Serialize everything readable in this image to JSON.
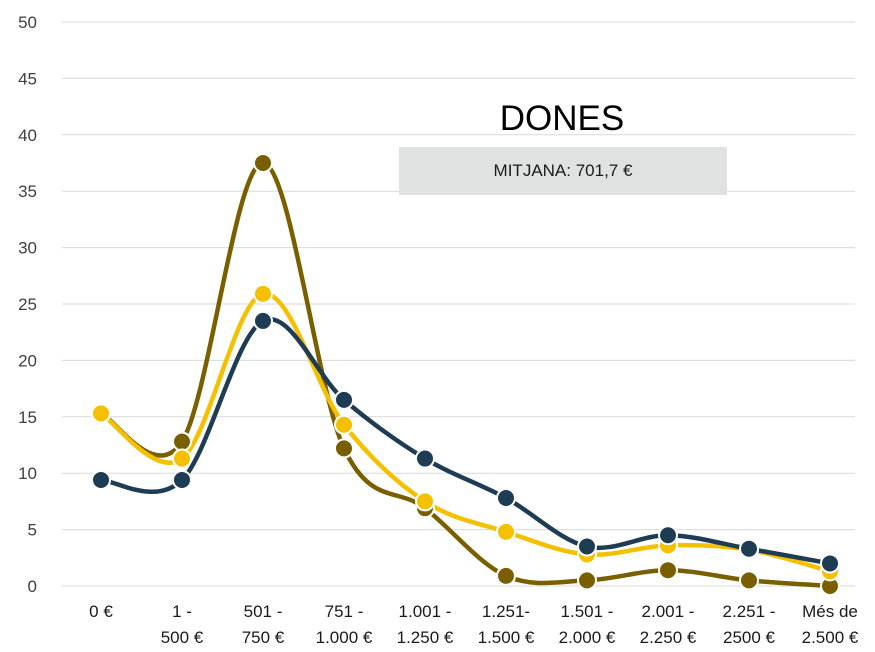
{
  "chart_data": {
    "type": "line",
    "title": "DONES",
    "annotation": "MITJANA: 701,7 €",
    "ylim": [
      0,
      50
    ],
    "y_ticks": [
      0,
      5,
      10,
      15,
      20,
      25,
      30,
      35,
      40,
      45,
      50
    ],
    "grid": true,
    "smooth": true,
    "categories": [
      [
        "0 €"
      ],
      [
        "1 -",
        "500 €"
      ],
      [
        "501 -",
        "750 €"
      ],
      [
        "751 -",
        "1.000 €"
      ],
      [
        "1.001 -",
        "1.250 €"
      ],
      [
        "1.251-",
        "1.500 €"
      ],
      [
        "1.501 -",
        "2.000 €"
      ],
      [
        "2.001 -",
        "2.250 €"
      ],
      [
        "2.251 -",
        "2500 €"
      ],
      [
        "Més de",
        "2.500 €"
      ]
    ],
    "series": [
      {
        "color": "#7a5f00",
        "values": [
          15.3,
          12.8,
          37.5,
          12.2,
          6.9,
          0.9,
          0.5,
          1.4,
          0.5,
          0.0
        ]
      },
      {
        "color": "#f5c000",
        "values": [
          15.3,
          11.3,
          25.9,
          14.3,
          7.5,
          4.8,
          2.8,
          3.6,
          3.2,
          1.3
        ]
      },
      {
        "color": "#1e3d55",
        "values": [
          9.4,
          9.4,
          23.5,
          16.5,
          11.3,
          7.8,
          3.5,
          4.5,
          3.3,
          2.0
        ]
      }
    ]
  }
}
